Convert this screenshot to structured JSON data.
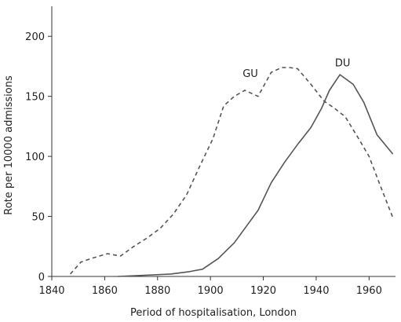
{
  "chart_data": {
    "type": "line",
    "title": "",
    "xlabel": "Period of hospitalisation, London",
    "ylabel": "Rote per 10000 admissions",
    "xlim": [
      1840,
      1970
    ],
    "ylim": [
      0,
      225
    ],
    "xticks": [
      1840,
      1860,
      1880,
      1900,
      1920,
      1940,
      1960
    ],
    "yticks": [
      0,
      50,
      100,
      150,
      200
    ],
    "grid": false,
    "legend": "none",
    "series": [
      {
        "name": "GU",
        "style": "dashed",
        "color": "#555555",
        "x": [
          1847,
          1851,
          1855,
          1861,
          1866,
          1871,
          1876,
          1881,
          1886,
          1891,
          1896,
          1901,
          1905,
          1909,
          1913,
          1918,
          1923,
          1927,
          1930,
          1933,
          1938,
          1943,
          1947,
          1951,
          1956,
          1960,
          1964,
          1969
        ],
        "y": [
          2,
          12,
          15,
          19,
          17,
          25,
          32,
          40,
          52,
          68,
          92,
          115,
          142,
          150,
          155,
          150,
          170,
          174,
          174,
          173,
          160,
          146,
          140,
          133,
          115,
          100,
          77,
          49
        ]
      },
      {
        "name": "DU",
        "style": "solid",
        "color": "#555555",
        "x": [
          1865,
          1875,
          1885,
          1892,
          1897,
          1903,
          1909,
          1913,
          1918,
          1923,
          1928,
          1933,
          1938,
          1942,
          1945,
          1949,
          1954,
          1958,
          1963,
          1969
        ],
        "y": [
          0,
          1,
          2,
          4,
          6,
          15,
          28,
          40,
          55,
          78,
          95,
          110,
          124,
          140,
          155,
          168,
          160,
          145,
          118,
          102
        ]
      }
    ]
  }
}
